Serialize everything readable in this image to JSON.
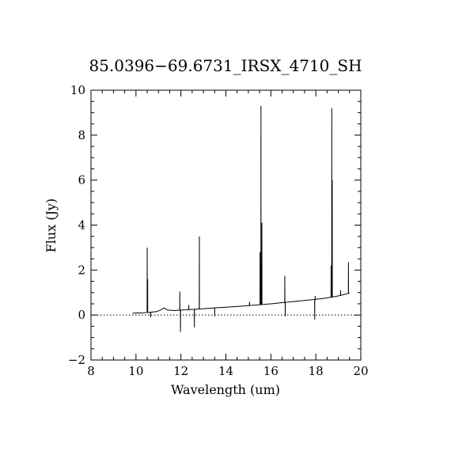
{
  "chart_data": {
    "type": "line",
    "title": "85.0396−69.6731_IRSX_4710_SH",
    "xlabel": "Wavelength (um)",
    "ylabel": "Flux (Jy)",
    "xlim": [
      8,
      20
    ],
    "ylim": [
      -2,
      10
    ],
    "xticks": [
      8,
      10,
      12,
      14,
      16,
      18,
      20
    ],
    "yticks": [
      -2,
      0,
      2,
      4,
      6,
      8,
      10
    ],
    "xtick_labels": [
      "8",
      "10",
      "12",
      "14",
      "16",
      "18",
      "20"
    ],
    "ytick_labels": [
      "−2",
      "0",
      "2",
      "4",
      "6",
      "8",
      "10"
    ],
    "zero_line": true,
    "line_color": "#000000",
    "series": [
      {
        "continuum": [
          [
            9.85,
            0.08
          ],
          [
            10.0,
            0.09
          ],
          [
            10.3,
            0.1
          ],
          [
            10.6,
            0.12
          ],
          [
            10.9,
            0.15
          ],
          [
            11.1,
            0.22
          ],
          [
            11.25,
            0.32
          ],
          [
            11.4,
            0.22
          ],
          [
            11.7,
            0.2
          ],
          [
            12.0,
            0.22
          ],
          [
            12.5,
            0.25
          ],
          [
            13.0,
            0.28
          ],
          [
            13.5,
            0.32
          ],
          [
            14.0,
            0.35
          ],
          [
            14.5,
            0.38
          ],
          [
            15.0,
            0.42
          ],
          [
            15.5,
            0.46
          ],
          [
            16.0,
            0.5
          ],
          [
            16.5,
            0.55
          ],
          [
            17.0,
            0.6
          ],
          [
            17.5,
            0.65
          ],
          [
            18.0,
            0.7
          ],
          [
            18.3,
            0.73
          ],
          [
            18.6,
            0.78
          ],
          [
            18.9,
            0.83
          ],
          [
            19.2,
            0.9
          ],
          [
            19.5,
            0.98
          ]
        ],
        "spikes": [
          [
            10.5,
            3.0
          ],
          [
            10.52,
            1.6
          ],
          [
            10.65,
            -0.1
          ],
          [
            11.95,
            1.05
          ],
          [
            11.98,
            -0.75
          ],
          [
            12.35,
            0.45
          ],
          [
            12.6,
            -0.55
          ],
          [
            12.82,
            3.5
          ],
          [
            13.5,
            -0.05
          ],
          [
            15.05,
            0.6
          ],
          [
            15.52,
            2.8
          ],
          [
            15.56,
            9.3
          ],
          [
            15.6,
            4.1
          ],
          [
            16.62,
            1.75
          ],
          [
            16.64,
            -0.05
          ],
          [
            17.95,
            -0.2
          ],
          [
            17.97,
            0.85
          ],
          [
            18.68,
            2.2
          ],
          [
            18.71,
            9.2
          ],
          [
            18.73,
            6.0
          ],
          [
            19.1,
            1.1
          ],
          [
            19.45,
            2.35
          ]
        ]
      }
    ]
  }
}
